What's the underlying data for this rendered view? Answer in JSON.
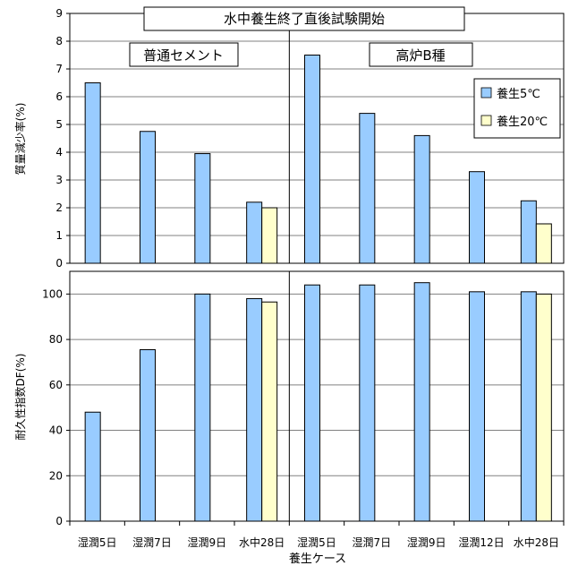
{
  "colors": {
    "s5": "#99ccff",
    "s20": "#ffffcc",
    "stroke": "#000000",
    "grid": "#808080"
  },
  "title": "水中養生終了直後試験開始",
  "xlabel": "養生ケース",
  "chart_data": {
    "type": "bar",
    "categories": [
      "湿潤5日",
      "湿潤7日",
      "湿潤9日",
      "水中28日",
      "湿潤5日",
      "湿潤7日",
      "湿潤9日",
      "湿潤12日",
      "水中28日"
    ],
    "groups": [
      {
        "label": "普通セメント",
        "category_indices": [
          0,
          1,
          2,
          3
        ]
      },
      {
        "label": "高炉B種",
        "category_indices": [
          4,
          5,
          6,
          7,
          8
        ]
      }
    ],
    "legend": {
      "position": "right (upper panel)",
      "entries": [
        "養生5℃",
        "養生20℃"
      ]
    },
    "panels": [
      {
        "ylabel": "質量減少率(%)",
        "ylim": [
          0,
          9
        ],
        "yticks": [
          0,
          1,
          2,
          3,
          4,
          5,
          6,
          7,
          8,
          9
        ],
        "grid": true,
        "series": [
          {
            "name": "養生5℃",
            "values": [
              6.5,
              4.75,
              3.95,
              2.2,
              7.5,
              5.4,
              4.6,
              3.3,
              2.25
            ]
          },
          {
            "name": "養生20℃",
            "values": [
              null,
              null,
              null,
              2.0,
              null,
              null,
              null,
              null,
              1.42
            ]
          }
        ]
      },
      {
        "ylabel": "耐久性指数DF(%)",
        "ylim": [
          0,
          110
        ],
        "yticks": [
          0,
          20,
          40,
          60,
          80,
          100
        ],
        "grid": true,
        "series": [
          {
            "name": "養生5℃",
            "values": [
              48,
              75.5,
              100,
              98,
              104,
              104,
              105,
              101,
              101
            ]
          },
          {
            "name": "養生20℃",
            "values": [
              null,
              null,
              null,
              96.5,
              null,
              null,
              null,
              null,
              100
            ]
          }
        ]
      }
    ]
  }
}
